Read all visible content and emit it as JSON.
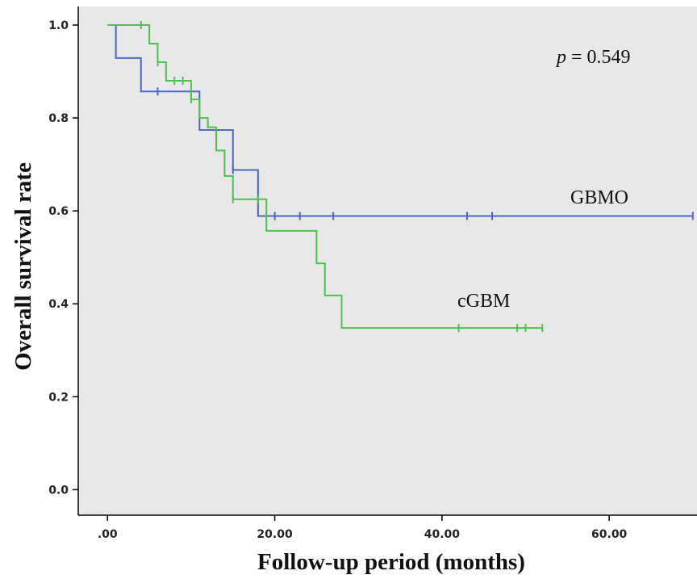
{
  "chart_data": {
    "type": "line",
    "step": true,
    "xlabel": "Follow-up period (months)",
    "ylabel": "Overall survival rate",
    "xlim": [
      -3.5,
      70.5
    ],
    "ylim": [
      -0.055,
      1.04
    ],
    "x_ticks": [
      0,
      20,
      40,
      60
    ],
    "x_tick_labels": [
      ".00",
      "20.00",
      "40.00",
      "60.00"
    ],
    "y_ticks": [
      0,
      0.2,
      0.4,
      0.6,
      0.8,
      1.0
    ],
    "y_tick_labels": [
      "0.0",
      "0.2",
      "0.4",
      "0.6",
      "0.8",
      "1.0"
    ],
    "grid": false,
    "background": "#e8e8e8",
    "annotations": {
      "p_symbol": "p",
      "p_rest": " = 0.549"
    },
    "series": [
      {
        "name": "GBMO",
        "color": "#4a68c8",
        "steps": [
          [
            0,
            1.0
          ],
          [
            1,
            0.929
          ],
          [
            4,
            0.857
          ],
          [
            10,
            0.857
          ],
          [
            11,
            0.774
          ],
          [
            15,
            0.774
          ],
          [
            15,
            0.688
          ],
          [
            18,
            0.688
          ],
          [
            18,
            0.589
          ],
          [
            70,
            0.589
          ]
        ],
        "censored": [
          [
            6,
            0.857
          ],
          [
            15,
            0.688
          ],
          [
            20,
            0.589
          ],
          [
            23,
            0.589
          ],
          [
            27,
            0.589
          ],
          [
            43,
            0.589
          ],
          [
            46,
            0.589
          ],
          [
            70,
            0.589
          ]
        ]
      },
      {
        "name": "cGBM",
        "color": "#4ec24e",
        "steps": [
          [
            0,
            1.0
          ],
          [
            5,
            1.0
          ],
          [
            5,
            0.96
          ],
          [
            6,
            0.96
          ],
          [
            6,
            0.92
          ],
          [
            7,
            0.92
          ],
          [
            7,
            0.88
          ],
          [
            10,
            0.88
          ],
          [
            10,
            0.84
          ],
          [
            11,
            0.84
          ],
          [
            11,
            0.8
          ],
          [
            12,
            0.8
          ],
          [
            12,
            0.78
          ],
          [
            13,
            0.78
          ],
          [
            13,
            0.73
          ],
          [
            14,
            0.73
          ],
          [
            14,
            0.675
          ],
          [
            15,
            0.675
          ],
          [
            15,
            0.625
          ],
          [
            19,
            0.625
          ],
          [
            19,
            0.557
          ],
          [
            25,
            0.557
          ],
          [
            25,
            0.487
          ],
          [
            26,
            0.487
          ],
          [
            26,
            0.418
          ],
          [
            28,
            0.418
          ],
          [
            28,
            0.348
          ],
          [
            52,
            0.348
          ]
        ],
        "censored": [
          [
            4,
            1.0
          ],
          [
            6,
            0.92
          ],
          [
            8,
            0.88
          ],
          [
            9,
            0.88
          ],
          [
            10,
            0.84
          ],
          [
            15,
            0.625
          ],
          [
            18,
            0.625
          ],
          [
            42,
            0.348
          ],
          [
            49,
            0.348
          ],
          [
            50,
            0.348
          ],
          [
            52,
            0.348
          ]
        ]
      }
    ],
    "series_labels": [
      "GBMO",
      "cGBM"
    ]
  }
}
